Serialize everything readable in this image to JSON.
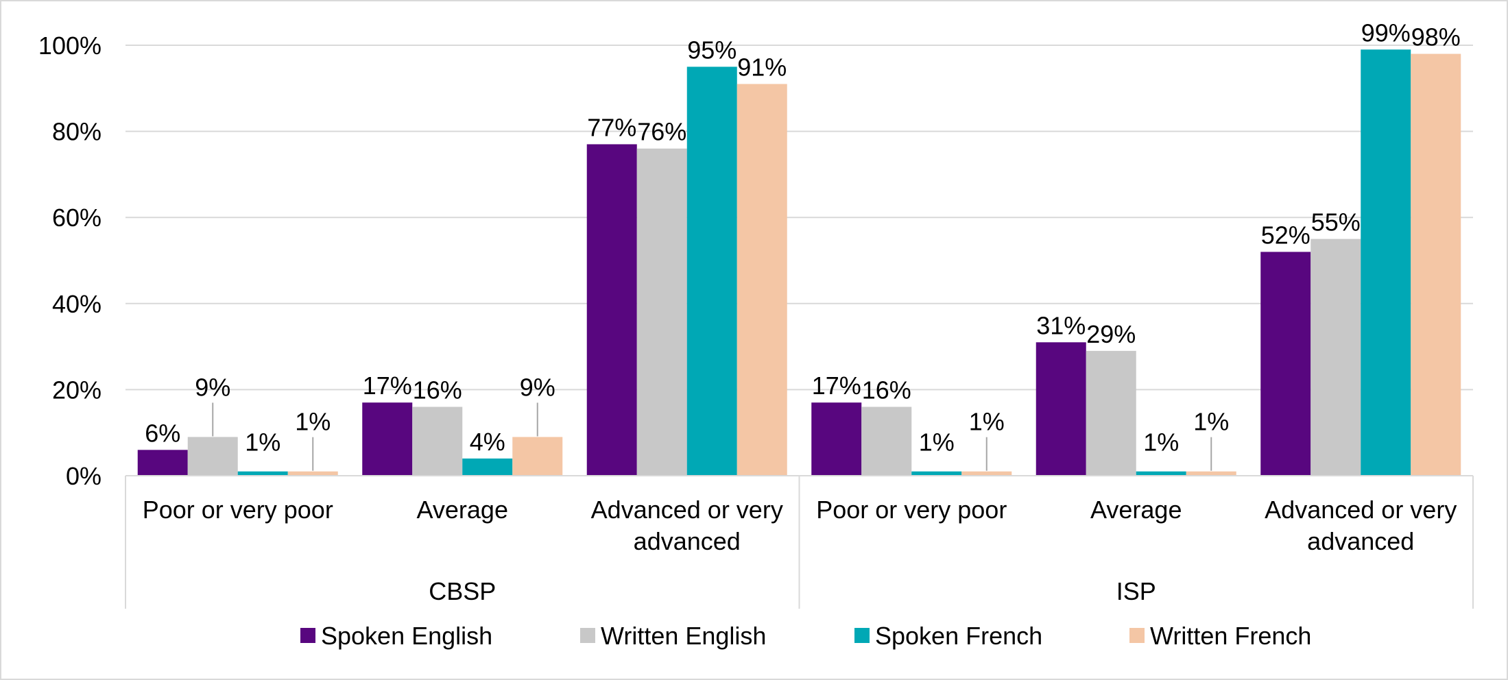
{
  "chart_data": {
    "type": "bar",
    "groups": [
      {
        "label": "CBSP",
        "categories": [
          "Poor or very poor",
          "Average",
          "Advanced or very advanced"
        ]
      },
      {
        "label": "ISP",
        "categories": [
          "Poor or very poor",
          "Average",
          "Advanced or very advanced"
        ]
      }
    ],
    "series": [
      {
        "name": "Spoken English",
        "color": "#58067F",
        "values": [
          6,
          17,
          77,
          17,
          31,
          52
        ],
        "labels": [
          "6%",
          "17%",
          "77%",
          "17%",
          "31%",
          "52%"
        ]
      },
      {
        "name": "Written English",
        "color": "#C8C8C8",
        "values": [
          9,
          16,
          76,
          16,
          29,
          55
        ],
        "labels": [
          "9%",
          "16%",
          "76%",
          "16%",
          "29%",
          "55%"
        ]
      },
      {
        "name": "Spoken French",
        "color": "#00A8B5",
        "values": [
          1,
          4,
          95,
          1,
          1,
          99
        ],
        "labels": [
          "1%",
          "4%",
          "95%",
          "1%",
          "1%",
          "99%"
        ]
      },
      {
        "name": "Written French",
        "color": "#F4C6A5",
        "values": [
          1,
          9,
          91,
          1,
          1,
          98
        ],
        "labels": [
          "1%",
          "9%",
          "91%",
          "1%",
          "1%",
          "98%"
        ]
      }
    ],
    "ylim": [
      0,
      100
    ],
    "yticks": [
      "0%",
      "20%",
      "40%",
      "60%",
      "80%",
      "100%"
    ],
    "grid": true,
    "legend": "bottom",
    "title": "",
    "xlabel": "",
    "ylabel": ""
  }
}
